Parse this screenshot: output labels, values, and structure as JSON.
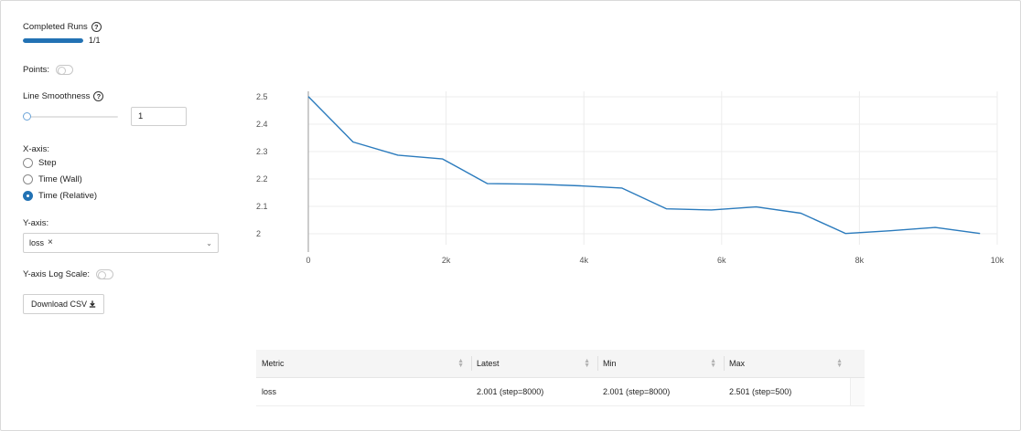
{
  "controls": {
    "completed_runs_label": "Completed Runs",
    "completed_runs_value": "1/1",
    "completed_runs_fraction": 1.0,
    "points_label": "Points:",
    "line_smoothness_label": "Line Smoothness",
    "line_smoothness_value": "1",
    "xaxis_label": "X-axis:",
    "xaxis_options": [
      {
        "label": "Step",
        "checked": false
      },
      {
        "label": "Time (Wall)",
        "checked": false
      },
      {
        "label": "Time (Relative)",
        "checked": true
      }
    ],
    "yaxis_label": "Y-axis:",
    "yaxis_selected": "loss",
    "yaxis_log_label": "Y-axis Log Scale:",
    "download_label": "Download CSV"
  },
  "icons": {
    "help": "question-circle-icon",
    "tag_remove": "close-icon",
    "select_chevron": "chevron-down-icon",
    "download": "download-icon",
    "sort": "sort-icon"
  },
  "colors": {
    "accent": "#2272b4",
    "line": "#2b7bbd"
  },
  "chart_data": {
    "type": "line",
    "title": "",
    "xlabel": "",
    "ylabel": "",
    "xlim": [
      0,
      10000
    ],
    "ylim": [
      1.96,
      2.52
    ],
    "xticks": [
      0,
      2000,
      4000,
      6000,
      8000,
      10000
    ],
    "xtick_labels": [
      "0",
      "2k",
      "4k",
      "6k",
      "8k",
      "10k"
    ],
    "yticks": [
      2,
      2.1,
      2.2,
      2.3,
      2.4,
      2.5
    ],
    "ytick_labels": [
      "2",
      "2.1",
      "2.2",
      "2.3",
      "2.4",
      "2.5"
    ],
    "grid": true,
    "series": [
      {
        "x": [
          0,
          650,
          1300,
          1950,
          2600,
          3300,
          3950,
          4550,
          5200,
          5850,
          6500,
          7150,
          7800,
          8450,
          9100,
          9750
        ],
        "y": [
          2.501,
          2.335,
          2.287,
          2.273,
          2.183,
          2.181,
          2.175,
          2.167,
          2.091,
          2.087,
          2.098,
          2.075,
          2.001,
          2.011,
          2.023,
          2.001
        ]
      }
    ]
  },
  "table": {
    "headers": [
      "Metric",
      "Latest",
      "Min",
      "Max"
    ],
    "rows": [
      [
        "loss",
        "2.001 (step=8000)",
        "2.001 (step=8000)",
        "2.501 (step=500)"
      ]
    ]
  }
}
